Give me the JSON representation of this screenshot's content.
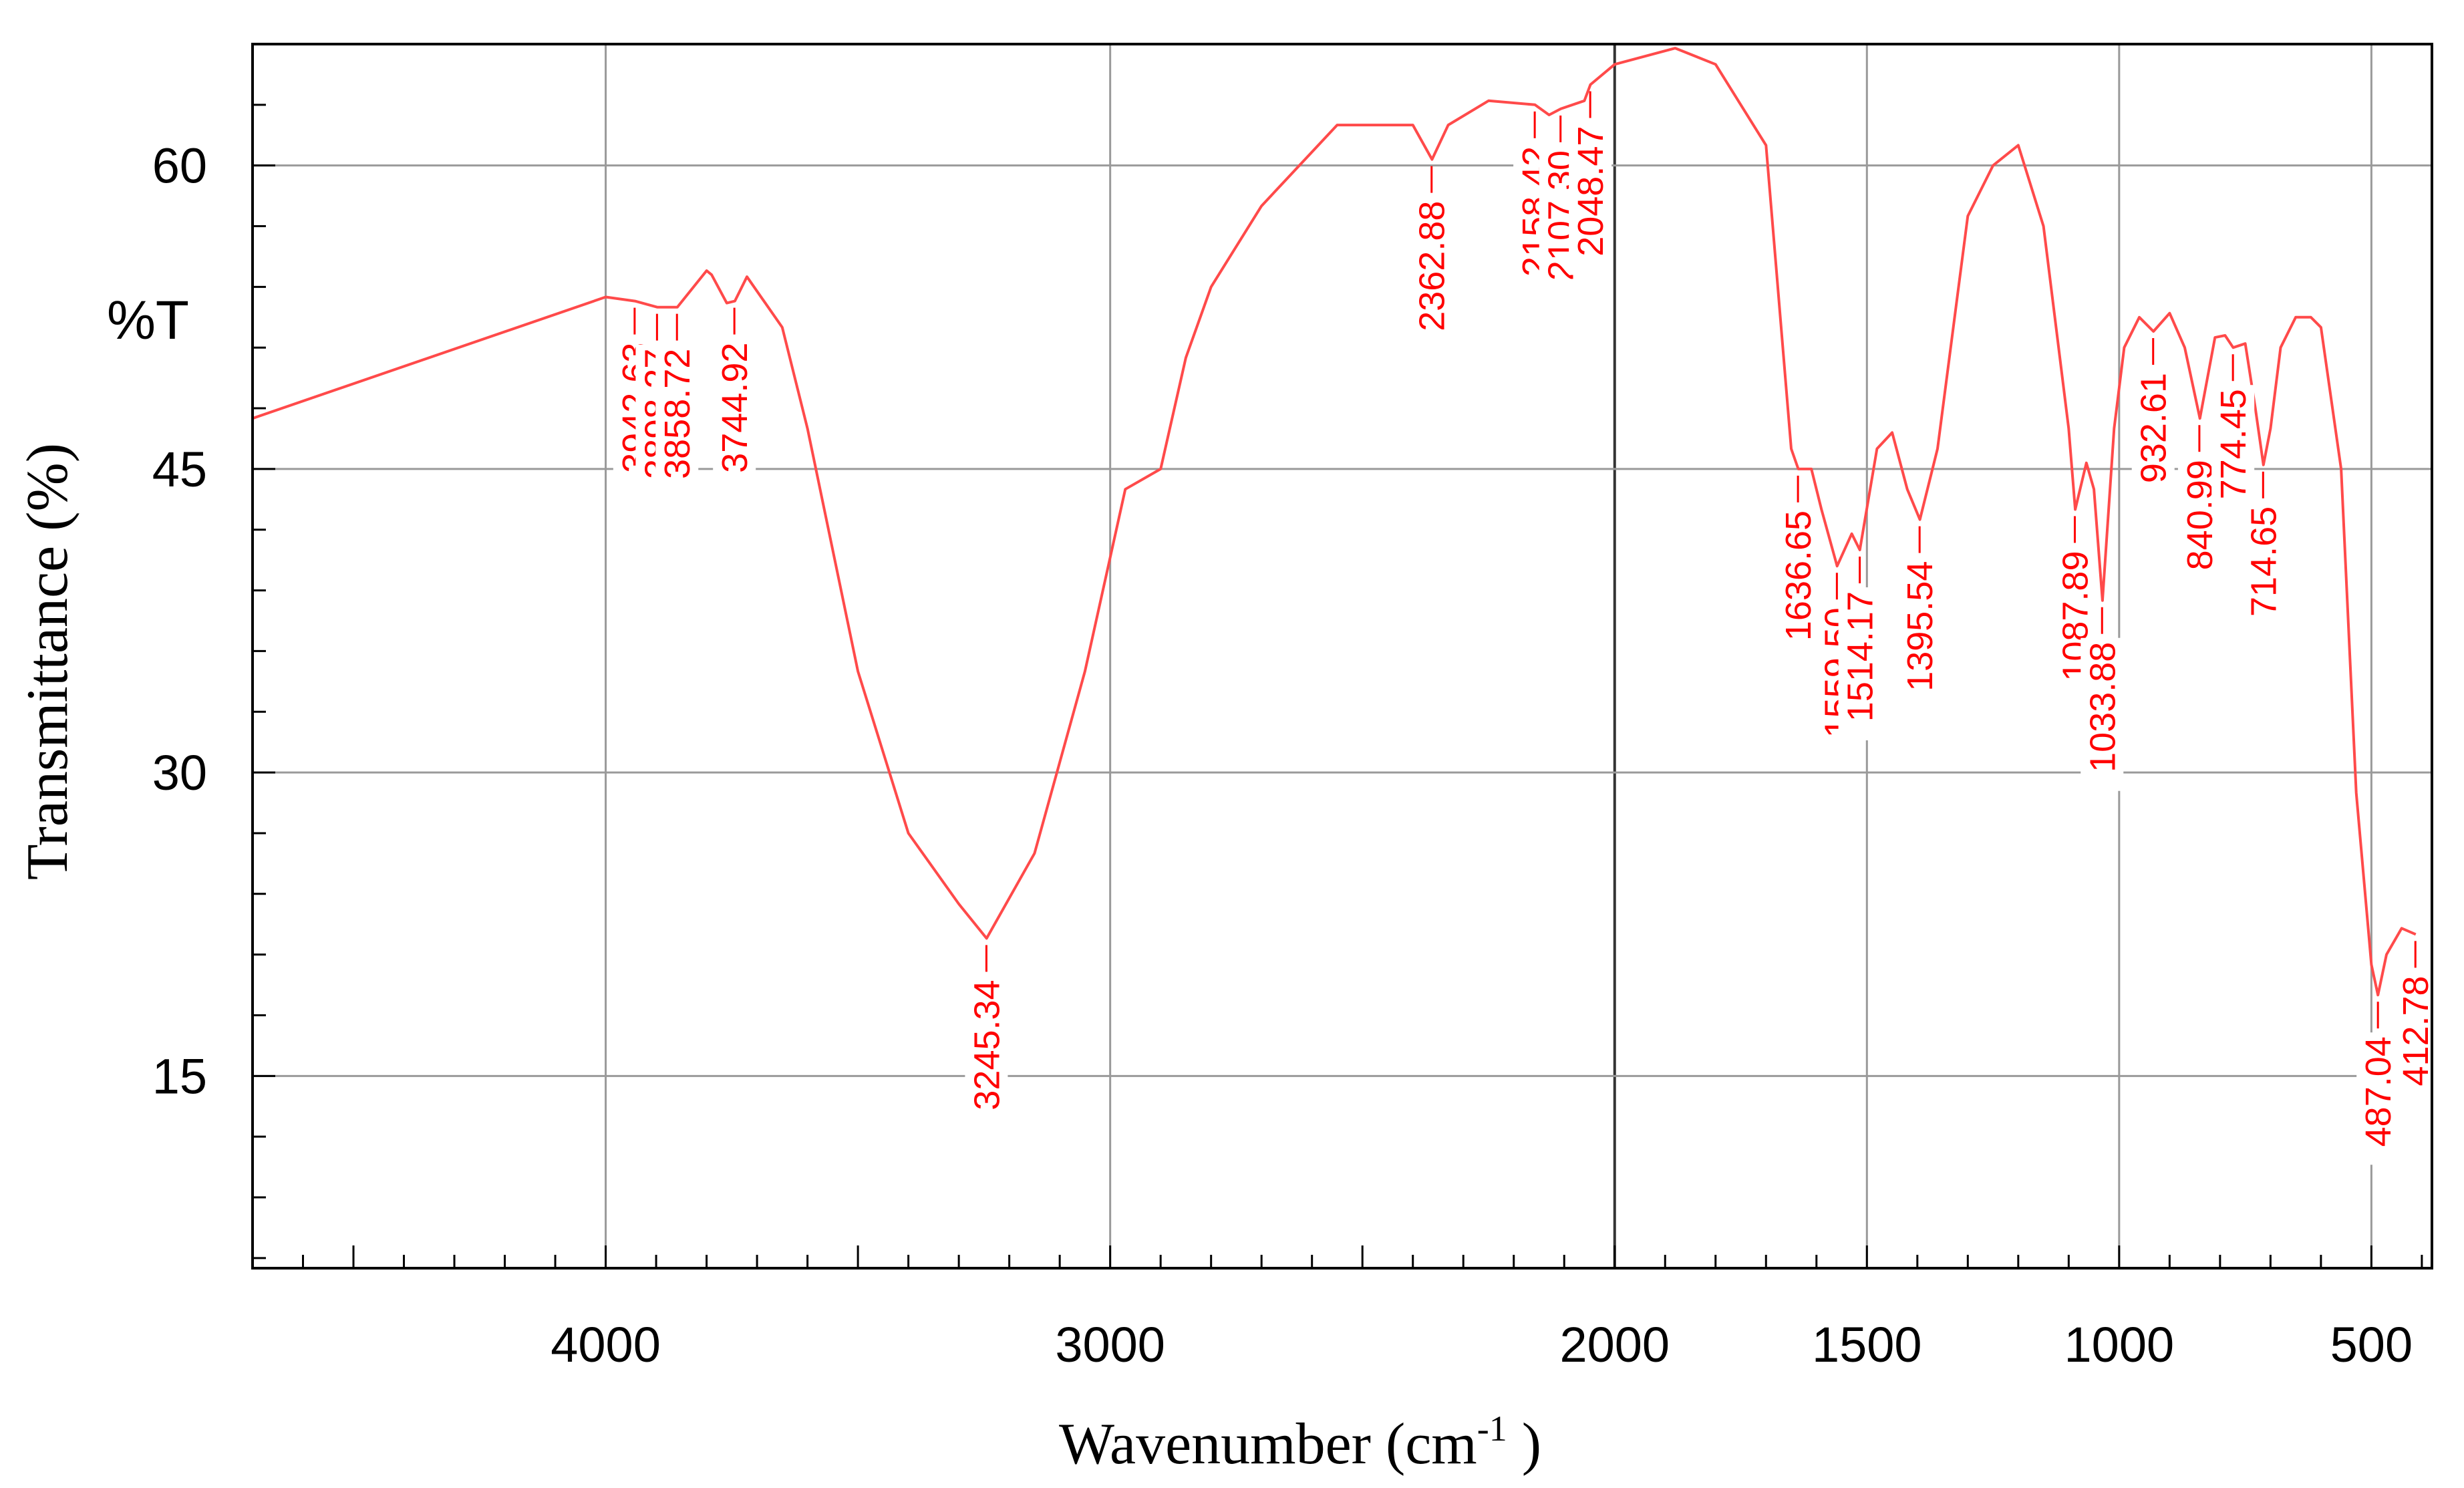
{
  "chart_data": {
    "type": "line",
    "title": "",
    "xlabel": "Wavenumber (cm-1 )",
    "xlabel_main": "Wavenumber (cm",
    "xlabel_sup": "-1",
    "xlabel_end": " )",
    "ylabel": "Transmittance (%)",
    "unit_label": "%T",
    "xlim": [
      4700,
      380
    ],
    "ylim": [
      5.5,
      66
    ],
    "x_ticks": [
      4000,
      3000,
      2000,
      1500,
      1000,
      500
    ],
    "x_tick_labels": [
      "4000",
      "3000",
      "2000",
      "1500",
      "1000",
      "500"
    ],
    "y_ticks": [
      15,
      30,
      45,
      60
    ],
    "y_tick_labels": [
      "15",
      "30",
      "45",
      "60"
    ],
    "grid": true,
    "colors": {
      "spectrum": "#ff4a4a",
      "labels": "#ff0000",
      "grid": "#9a9a9a",
      "axis": "#000000"
    },
    "series": [
      {
        "name": "spectrum",
        "x": [
          4700,
          4000,
          3942,
          3898,
          3858,
          3800,
          3790,
          3760,
          3744,
          3720,
          3650,
          3600,
          3500,
          3400,
          3300,
          3245,
          3150,
          3050,
          2970,
          2900,
          2850,
          2800,
          2700,
          2550,
          2400,
          2362,
          2330,
          2250,
          2158,
          2130,
          2107,
          2060,
          2048,
          2000,
          1880,
          1800,
          1750,
          1700,
          1680,
          1650,
          1636,
          1610,
          1590,
          1559,
          1530,
          1514,
          1480,
          1450,
          1420,
          1395,
          1360,
          1300,
          1250,
          1200,
          1150,
          1100,
          1087,
          1065,
          1050,
          1033,
          1010,
          990,
          960,
          932,
          900,
          870,
          840,
          810,
          790,
          774,
          750,
          730,
          714,
          700,
          680,
          650,
          620,
          600,
          560,
          530,
          500,
          487,
          470,
          440,
          412
        ],
        "y": [
          47.5,
          53.5,
          53.3,
          53.0,
          53.0,
          54.8,
          54.6,
          53.2,
          53.3,
          54.5,
          52.0,
          47.0,
          35.0,
          27.0,
          23.5,
          21.8,
          26.0,
          35.0,
          44.0,
          45.0,
          50.5,
          54.0,
          58.0,
          62.0,
          62.0,
          60.3,
          62.0,
          63.2,
          63.0,
          62.5,
          62.8,
          63.2,
          64.0,
          65.0,
          65.8,
          65.0,
          63.0,
          61.0,
          55.0,
          46.0,
          45.0,
          45.0,
          43.0,
          40.2,
          41.8,
          41.0,
          46.0,
          46.8,
          44.0,
          42.5,
          46.0,
          57.5,
          60.0,
          61.0,
          57.0,
          47.0,
          43.0,
          45.3,
          44.0,
          38.5,
          47.0,
          51.0,
          52.5,
          51.8,
          52.7,
          51.0,
          47.5,
          51.5,
          51.6,
          51.0,
          51.2,
          48.0,
          45.2,
          47.0,
          51.0,
          52.5,
          52.5,
          52.0,
          45.0,
          29.0,
          20.5,
          19.0,
          21.0,
          22.3,
          22.0
        ]
      }
    ],
    "peaks": [
      {
        "label": "3942.63",
        "x": 3942.63,
        "y": 53.3,
        "pos": "below"
      },
      {
        "label": "3898.27",
        "x": 3898.27,
        "y": 53.0,
        "pos": "below"
      },
      {
        "label": "3858.72",
        "x": 3858.72,
        "y": 53.0,
        "pos": "below"
      },
      {
        "label": "3744.92",
        "x": 3744.92,
        "y": 53.3,
        "pos": "below"
      },
      {
        "label": "3245.34",
        "x": 3245.34,
        "y": 21.8,
        "pos": "below"
      },
      {
        "label": "2362.88",
        "x": 2362.88,
        "y": 60.3,
        "pos": "below"
      },
      {
        "label": "2158.42",
        "x": 2158.42,
        "y": 63.0,
        "pos": "below"
      },
      {
        "label": "2107.30",
        "x": 2107.3,
        "y": 62.8,
        "pos": "below"
      },
      {
        "label": "2048.47",
        "x": 2048.47,
        "y": 64.0,
        "pos": "below"
      },
      {
        "label": "1636.65",
        "x": 1636.65,
        "y": 45.0,
        "pos": "below"
      },
      {
        "label": "1559.50",
        "x": 1559.5,
        "y": 40.2,
        "pos": "below"
      },
      {
        "label": "1514.17",
        "x": 1514.17,
        "y": 41.0,
        "pos": "below"
      },
      {
        "label": "1395.54",
        "x": 1395.54,
        "y": 42.5,
        "pos": "below"
      },
      {
        "label": "1087.89",
        "x": 1087.89,
        "y": 43.0,
        "pos": "below"
      },
      {
        "label": "1033.88",
        "x": 1033.88,
        "y": 38.5,
        "pos": "below"
      },
      {
        "label": "932.61",
        "x": 932.61,
        "y": 51.8,
        "pos": "below"
      },
      {
        "label": "840.99",
        "x": 840.99,
        "y": 47.5,
        "pos": "below"
      },
      {
        "label": "774.45",
        "x": 774.45,
        "y": 51.0,
        "pos": "below"
      },
      {
        "label": "714.65",
        "x": 714.65,
        "y": 45.2,
        "pos": "below"
      },
      {
        "label": "487.04",
        "x": 487.04,
        "y": 19.0,
        "pos": "below"
      },
      {
        "label": "412.78",
        "x": 412.78,
        "y": 22.0,
        "pos": "below"
      }
    ]
  }
}
